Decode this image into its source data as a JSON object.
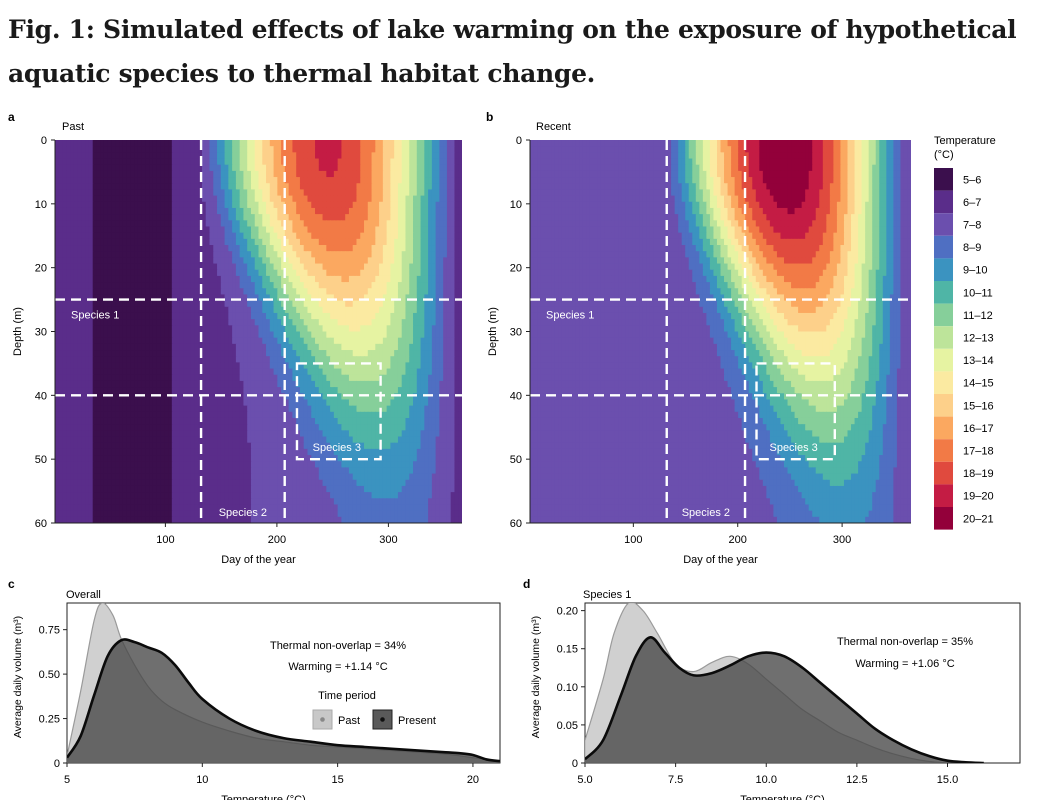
{
  "figure": {
    "title": "Fig. 1: Simulated effects of lake warming on the exposure of hypothetical aquatic species to thermal habitat change."
  },
  "panels": {
    "a": {
      "letter": "a",
      "label": "Past"
    },
    "b": {
      "letter": "b",
      "label": "Recent"
    },
    "c": {
      "letter": "c",
      "label": "Overall"
    },
    "d": {
      "letter": "d",
      "label": "Species 1"
    }
  },
  "heatmap_axes": {
    "xlabel": "Day of the year",
    "ylabel": "Depth (m)",
    "xticks": [
      100,
      200,
      300
    ],
    "yticks": [
      0,
      10,
      20,
      30,
      40,
      50,
      60
    ]
  },
  "boxes": {
    "species1": "Species 1",
    "species2": "Species 2",
    "species3": "Species 3"
  },
  "legend": {
    "title_line1": "Temperature",
    "title_line2": "(°C)",
    "items": [
      {
        "label": "5–6",
        "color": "#3b0f4d"
      },
      {
        "label": "6–7",
        "color": "#5a2d8a"
      },
      {
        "label": "7–8",
        "color": "#6b4fae"
      },
      {
        "label": "8–9",
        "color": "#4f6fc2"
      },
      {
        "label": "9–10",
        "color": "#3b93c0"
      },
      {
        "label": "10–11",
        "color": "#4fb5a6"
      },
      {
        "label": "11–12",
        "color": "#86cf9a"
      },
      {
        "label": "12–13",
        "color": "#bde49a"
      },
      {
        "label": "13–14",
        "color": "#e6f3a2"
      },
      {
        "label": "14–15",
        "color": "#fbeaa1"
      },
      {
        "label": "15–16",
        "color": "#fdd08a"
      },
      {
        "label": "16–17",
        "color": "#fba860"
      },
      {
        "label": "17–18",
        "color": "#f27a46"
      },
      {
        "label": "18–19",
        "color": "#e04a3e"
      },
      {
        "label": "19–20",
        "color": "#c41c44"
      },
      {
        "label": "20–21",
        "color": "#93003a"
      }
    ]
  },
  "chart_data": [
    {
      "panel": "a",
      "type": "heatmap",
      "title": "Past",
      "xlabel": "Day of the year",
      "ylabel": "Depth (m)",
      "xlim": [
        1,
        366
      ],
      "ylim": [
        60,
        0
      ],
      "colorbar": "Temperature (°C), 5–21 in 1 °C bands",
      "max_surface_temperature_range": "18–19",
      "species_boxes": [
        {
          "name": "Species 1",
          "days": [
            1,
            366
          ],
          "depth": [
            25,
            40
          ]
        },
        {
          "name": "Species 2",
          "days": [
            132,
            207
          ],
          "depth": [
            0,
            60
          ]
        },
        {
          "name": "Species 3",
          "days": [
            218,
            293
          ],
          "depth": [
            35,
            50
          ]
        }
      ]
    },
    {
      "panel": "b",
      "type": "heatmap",
      "title": "Recent",
      "xlabel": "Day of the year",
      "ylabel": "Depth (m)",
      "xlim": [
        1,
        366
      ],
      "ylim": [
        60,
        0
      ],
      "colorbar": "Temperature (°C), 5–21 in 1 °C bands",
      "max_surface_temperature_range": "20–21",
      "species_boxes": [
        {
          "name": "Species 1",
          "days": [
            1,
            366
          ],
          "depth": [
            25,
            40
          ]
        },
        {
          "name": "Species 2",
          "days": [
            132,
            207
          ],
          "depth": [
            0,
            60
          ]
        },
        {
          "name": "Species 3",
          "days": [
            218,
            293
          ],
          "depth": [
            35,
            50
          ]
        }
      ]
    },
    {
      "panel": "c",
      "type": "area",
      "title": "Overall",
      "xlabel": "Temperature (°C)",
      "ylabel": "Average daily volume (m³)",
      "xlim": [
        5,
        21
      ],
      "ylim": [
        0,
        0.9
      ],
      "xticks": [
        5,
        10,
        15,
        20
      ],
      "yticks": [
        0,
        0.25,
        0.5,
        0.75
      ],
      "annotation": [
        "Thermal non-overlap = 34%",
        "Warming = +1.14 °C"
      ],
      "legend_title": "Time period",
      "series": [
        {
          "name": "Past",
          "color": "#c8c8c8",
          "x": [
            5,
            5.5,
            6,
            6.3,
            6.7,
            7,
            7.5,
            8,
            8.5,
            9,
            10,
            11,
            12,
            13,
            14,
            15,
            16,
            17,
            18,
            19,
            20,
            20.5,
            21
          ],
          "y": [
            0.04,
            0.4,
            0.8,
            0.9,
            0.83,
            0.7,
            0.55,
            0.43,
            0.35,
            0.3,
            0.23,
            0.18,
            0.14,
            0.12,
            0.1,
            0.09,
            0.08,
            0.07,
            0.06,
            0.05,
            0.03,
            0.02,
            0.01
          ]
        },
        {
          "name": "Present",
          "color": "#5a5a5a",
          "x": [
            5,
            5.5,
            6,
            6.5,
            7,
            7.5,
            8,
            8.5,
            9,
            9.5,
            10,
            11,
            12,
            13,
            14,
            15,
            16,
            17,
            18,
            19,
            19.5,
            20,
            20.5,
            21
          ],
          "y": [
            0.03,
            0.15,
            0.38,
            0.6,
            0.69,
            0.68,
            0.65,
            0.62,
            0.55,
            0.45,
            0.36,
            0.25,
            0.18,
            0.14,
            0.12,
            0.1,
            0.09,
            0.08,
            0.07,
            0.06,
            0.055,
            0.045,
            0.02,
            0.01
          ]
        }
      ]
    },
    {
      "panel": "d",
      "type": "area",
      "title": "Species 1",
      "xlabel": "Temperature (°C)",
      "ylabel": "Average daily volume (m³)",
      "xlim": [
        5,
        17
      ],
      "ylim": [
        0,
        0.21
      ],
      "xticks": [
        5.0,
        7.5,
        10.0,
        12.5,
        15.0
      ],
      "yticks": [
        0,
        0.05,
        0.1,
        0.15,
        0.2
      ],
      "annotation": [
        "Thermal non-overlap = 35%",
        "Warming = +1.06 °C"
      ],
      "series": [
        {
          "name": "Past",
          "color": "#c8c8c8",
          "x": [
            5,
            5.5,
            5.8,
            6.2,
            6.6,
            7,
            7.5,
            8,
            8.5,
            9,
            9.5,
            10,
            10.5,
            11,
            11.5,
            12,
            12.5,
            13,
            13.5,
            14,
            14.5,
            15
          ],
          "y": [
            0.03,
            0.11,
            0.17,
            0.21,
            0.2,
            0.17,
            0.13,
            0.12,
            0.132,
            0.14,
            0.13,
            0.11,
            0.09,
            0.07,
            0.055,
            0.04,
            0.03,
            0.02,
            0.012,
            0.006,
            0.002,
            0
          ]
        },
        {
          "name": "Present",
          "color": "#5a5a5a",
          "x": [
            5,
            5.5,
            6,
            6.4,
            6.8,
            7.2,
            7.6,
            8,
            8.5,
            9,
            9.5,
            10,
            10.5,
            11,
            11.5,
            12,
            12.5,
            13,
            13.5,
            14,
            14.5,
            15,
            15.5,
            16
          ],
          "y": [
            0.005,
            0.03,
            0.09,
            0.14,
            0.165,
            0.145,
            0.125,
            0.115,
            0.118,
            0.128,
            0.14,
            0.145,
            0.14,
            0.125,
            0.105,
            0.085,
            0.065,
            0.045,
            0.03,
            0.018,
            0.009,
            0.003,
            0.001,
            0
          ]
        }
      ]
    }
  ]
}
